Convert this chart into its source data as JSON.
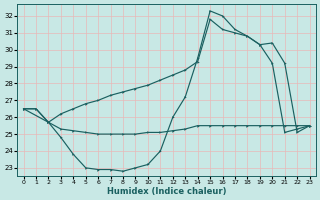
{
  "xlabel": "Humidex (Indice chaleur)",
  "bg_color": "#c8e8e5",
  "grid_color": "#e8b8b8",
  "line_color": "#1a6060",
  "xlim": [
    -0.5,
    23.5
  ],
  "ylim": [
    22.5,
    32.7
  ],
  "xticks": [
    0,
    1,
    2,
    3,
    4,
    5,
    6,
    7,
    8,
    9,
    10,
    11,
    12,
    13,
    14,
    15,
    16,
    17,
    18,
    19,
    20,
    21,
    22,
    23
  ],
  "yticks": [
    23,
    24,
    25,
    26,
    27,
    28,
    29,
    30,
    31,
    32
  ],
  "s1_x": [
    0,
    1,
    2,
    3,
    4,
    5,
    6,
    7,
    8,
    9,
    10,
    11,
    12,
    13,
    14,
    15,
    16,
    17,
    18,
    19,
    20,
    21,
    22,
    23
  ],
  "s1_y": [
    26.5,
    26.5,
    25.7,
    24.8,
    23.8,
    23.0,
    22.9,
    22.9,
    22.8,
    23.0,
    23.2,
    24.0,
    26.0,
    27.2,
    29.5,
    32.3,
    32.0,
    31.2,
    30.8,
    30.3,
    29.2,
    25.1,
    25.3,
    25.5
  ],
  "s2_x": [
    0,
    2,
    3,
    4,
    5,
    6,
    7,
    8,
    9,
    10,
    11,
    12,
    13,
    14,
    15,
    16,
    17,
    18,
    19,
    20,
    21,
    22,
    23
  ],
  "s2_y": [
    26.5,
    25.7,
    25.3,
    25.2,
    25.1,
    25.0,
    25.0,
    25.0,
    25.0,
    25.1,
    25.1,
    25.2,
    25.3,
    25.5,
    25.5,
    25.5,
    25.5,
    25.5,
    25.5,
    25.5,
    25.5,
    25.5,
    25.5
  ],
  "s3_x": [
    0,
    1,
    2,
    3,
    4,
    5,
    6,
    7,
    8,
    9,
    10,
    11,
    12,
    13,
    14,
    15,
    16,
    17,
    18,
    19,
    20,
    21,
    22,
    23
  ],
  "s3_y": [
    26.5,
    26.5,
    25.7,
    26.2,
    26.5,
    26.8,
    27.0,
    27.3,
    27.5,
    27.7,
    27.9,
    28.2,
    28.5,
    28.8,
    29.3,
    31.8,
    31.2,
    31.0,
    30.8,
    30.3,
    30.4,
    29.2,
    25.1,
    25.5
  ]
}
